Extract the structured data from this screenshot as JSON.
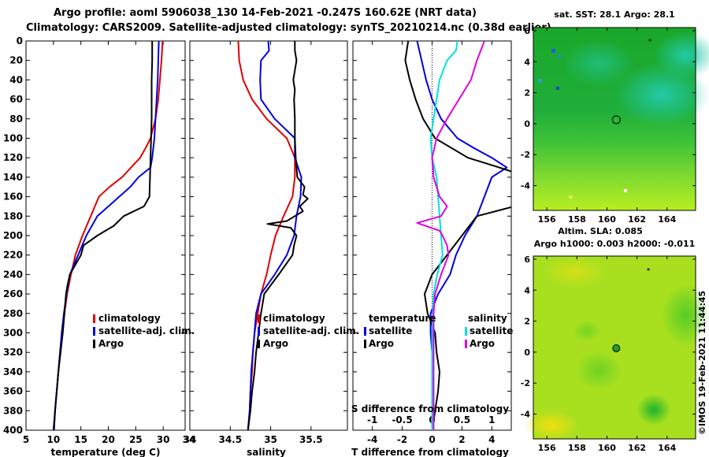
{
  "header": {
    "line1": "Argo profile: aoml 5906038_130 14-Feb-2021 -0.247S 160.62E (NRT data)",
    "line2": "Climatology: CARS2009. Satellite-adjusted climatology: synTS_20210214.nc (0.38d earlier)"
  },
  "colors": {
    "climatology": "#e00000",
    "satellite": "#0000e0",
    "argo": "#000000",
    "sat_salinity": "#00e0e0",
    "argo_salinity": "#e000e0"
  },
  "depth_ticks": [
    0,
    20,
    40,
    60,
    80,
    100,
    120,
    140,
    160,
    180,
    200,
    220,
    240,
    260,
    280,
    300,
    320,
    340,
    360,
    380,
    400
  ],
  "chart_data": [
    {
      "type": "line",
      "name": "temperature",
      "xlabel": "temperature (deg C)",
      "ylabel": "",
      "xlim": [
        5,
        34
      ],
      "ylim": [
        400,
        0
      ],
      "x_ticks": [
        "5",
        "10",
        "15",
        "20",
        "25",
        "30"
      ],
      "x_tick_values": [
        5,
        10,
        15,
        20,
        25,
        30
      ],
      "legend": [
        "climatology",
        "satellite-adj. clim.",
        "Argo"
      ],
      "series": [
        {
          "name": "climatology",
          "color": "#e00000",
          "depth": [
            0,
            20,
            40,
            60,
            80,
            100,
            110,
            120,
            140,
            150,
            160,
            180,
            200,
            220,
            240,
            260,
            280,
            300,
            320,
            340,
            360,
            380,
            400
          ],
          "values": [
            29.9,
            29.7,
            29.4,
            29.1,
            28.6,
            27.7,
            26.8,
            25.8,
            22.5,
            20.2,
            18.3,
            16.8,
            15.3,
            14.0,
            13.2,
            12.5,
            12.0,
            11.6,
            11.2,
            10.9,
            10.6,
            10.3,
            10.1
          ]
        },
        {
          "name": "satellite-adj. clim.",
          "color": "#0000e0",
          "depth": [
            0,
            20,
            40,
            60,
            80,
            100,
            120,
            130,
            140,
            150,
            160,
            180,
            200,
            220,
            240,
            260,
            280,
            300,
            320,
            340,
            360,
            380,
            400
          ],
          "values": [
            29.2,
            29.1,
            29.0,
            28.8,
            28.6,
            28.4,
            28.0,
            27.7,
            25.5,
            24.0,
            22.0,
            18.0,
            16.0,
            14.5,
            13.0,
            12.4,
            11.9,
            11.5,
            11.2,
            10.9,
            10.6,
            10.3,
            10.0
          ]
        },
        {
          "name": "Argo",
          "color": "#000000",
          "depth": [
            0,
            20,
            40,
            60,
            80,
            100,
            120,
            140,
            160,
            170,
            180,
            190,
            200,
            210,
            220,
            230,
            240,
            250,
            260,
            280,
            300,
            320,
            340,
            360,
            380,
            400
          ],
          "values": [
            28.0,
            28.0,
            27.9,
            27.9,
            27.9,
            27.8,
            27.7,
            27.6,
            27.5,
            26.5,
            22.8,
            21.0,
            18.0,
            15.5,
            15.0,
            14.0,
            13.0,
            12.6,
            12.3,
            12.0,
            11.7,
            11.3,
            10.9,
            10.6,
            10.3,
            10.1
          ]
        }
      ]
    },
    {
      "type": "line",
      "name": "salinity",
      "xlabel": "salinity",
      "ylabel": "",
      "xlim": [
        34.0,
        35.95
      ],
      "ylim": [
        400,
        0
      ],
      "x_ticks": [
        "34",
        "34.5",
        "35",
        "35.5"
      ],
      "x_tick_values": [
        34.0,
        34.5,
        35.0,
        35.5
      ],
      "legend": [
        "climatology",
        "satellite-adj. clim.",
        "Argo"
      ],
      "series": [
        {
          "name": "climatology",
          "color": "#e00000",
          "depth": [
            0,
            20,
            40,
            60,
            80,
            100,
            120,
            140,
            160,
            180,
            200,
            220,
            240,
            260,
            280,
            300,
            320,
            340,
            360,
            380,
            400
          ],
          "values": [
            34.6,
            34.61,
            34.66,
            34.77,
            34.95,
            35.2,
            35.3,
            35.3,
            35.27,
            35.16,
            35.06,
            35.0,
            34.95,
            34.88,
            34.84,
            34.8,
            34.78,
            34.77,
            34.75,
            34.74,
            34.72
          ]
        },
        {
          "name": "satellite-adj. clim.",
          "color": "#0000e0",
          "depth": [
            0,
            10,
            20,
            40,
            60,
            80,
            100,
            120,
            140,
            160,
            180,
            200,
            220,
            240,
            260,
            280,
            300,
            320,
            340,
            360,
            380,
            400
          ],
          "values": [
            34.97,
            34.98,
            34.88,
            34.87,
            34.88,
            35.05,
            35.3,
            35.3,
            35.38,
            35.37,
            35.32,
            35.29,
            35.2,
            35.05,
            34.88,
            34.82,
            34.8,
            34.78,
            34.76,
            34.75,
            34.74,
            34.72
          ]
        },
        {
          "name": "Argo",
          "color": "#000000",
          "depth": [
            0,
            10,
            20,
            40,
            50,
            60,
            80,
            100,
            120,
            140,
            150,
            158,
            162,
            170,
            175,
            180,
            185,
            188,
            192,
            200,
            210,
            220,
            240,
            260,
            280,
            300,
            320,
            340,
            360,
            380,
            400
          ],
          "values": [
            35.3,
            35.3,
            35.32,
            35.28,
            35.3,
            35.29,
            35.3,
            35.3,
            35.31,
            35.33,
            35.42,
            35.4,
            35.46,
            35.36,
            35.4,
            35.3,
            35.2,
            34.96,
            35.25,
            35.32,
            35.29,
            35.27,
            35.1,
            34.92,
            34.88,
            34.85,
            34.82,
            34.8,
            34.77,
            34.75,
            34.72
          ]
        }
      ]
    },
    {
      "type": "line",
      "name": "differences",
      "xlabel": "T difference from climatology",
      "xlabel_top": "S difference from climatology",
      "xlim": [
        -5.3,
        5.3
      ],
      "ylim": [
        400,
        0
      ],
      "x_ticks": [
        "-4",
        "-2",
        "0",
        "2",
        "4"
      ],
      "x_tick_values": [
        -4,
        -2,
        0,
        2,
        4
      ],
      "top_ticks": [
        "-1",
        "-0.5",
        "0",
        "0.5",
        "1"
      ],
      "top_tick_values": [
        -1,
        -0.5,
        0,
        0.5,
        1
      ],
      "legend_left_title": "temperature",
      "legend_right_title": "salinity",
      "legend_left": [
        "satellite",
        "Argo"
      ],
      "legend_right": [
        "satellite",
        "Argo"
      ],
      "series": [
        {
          "name": "temperature satellite",
          "color": "#0000e0",
          "depth": [
            0,
            20,
            40,
            60,
            80,
            100,
            110,
            120,
            130,
            140,
            160,
            180,
            200,
            220,
            240,
            260,
            280,
            300,
            320,
            340,
            360,
            380,
            400
          ],
          "values": [
            -1.0,
            -0.7,
            -0.4,
            0.0,
            0.6,
            1.7,
            2.8,
            4.0,
            5.0,
            4.0,
            3.5,
            3.0,
            2.2,
            1.6,
            1.2,
            0.4,
            -0.1,
            -0.1,
            0.0,
            0.0,
            0.0,
            0.0,
            0.0
          ]
        },
        {
          "name": "temperature Argo",
          "color": "#000000",
          "depth": [
            0,
            20,
            40,
            60,
            80,
            100,
            120,
            130,
            140,
            150,
            155,
            160,
            170,
            180,
            190,
            200,
            210,
            220,
            240,
            260,
            280,
            300,
            320,
            340,
            360,
            380,
            400
          ],
          "values": [
            -1.6,
            -1.8,
            -1.5,
            -1.1,
            -0.6,
            0.2,
            2.4,
            4.5,
            6.5,
            8.0,
            8.8,
            7.5,
            5.5,
            3.0,
            2.5,
            2.0,
            1.5,
            1.0,
            0.0,
            -0.5,
            -0.3,
            0.2,
            0.3,
            0.5,
            0.4,
            0.2,
            0.0
          ]
        },
        {
          "name": "salinity satellite",
          "color": "#00e0e0",
          "depth": [
            0,
            10,
            20,
            40,
            60,
            80,
            100,
            120,
            140,
            160,
            180,
            200,
            220,
            240,
            260,
            280,
            300,
            320,
            340,
            360,
            380,
            400
          ],
          "values": [
            1.7,
            1.6,
            1.0,
            0.5,
            0.3,
            0.1,
            -0.1,
            0.0,
            0.3,
            0.4,
            0.5,
            0.6,
            0.7,
            0.35,
            0.1,
            0.05,
            0.0,
            0.0,
            0.0,
            0.0,
            0.0,
            0.0
          ]
        },
        {
          "name": "salinity Argo",
          "color": "#e000e0",
          "depth": [
            0,
            20,
            40,
            60,
            80,
            100,
            120,
            140,
            160,
            170,
            180,
            187,
            195,
            200,
            210,
            220,
            240,
            260,
            280,
            300,
            320,
            340,
            360,
            380,
            400
          ],
          "values": [
            3.5,
            3.0,
            2.6,
            1.8,
            1.0,
            0.3,
            0.0,
            0.1,
            0.5,
            1.0,
            0.6,
            -1.0,
            0.5,
            0.7,
            1.0,
            1.1,
            0.6,
            0.2,
            0.1,
            0.1,
            0.1,
            0.1,
            0.1,
            0.1,
            0.1
          ]
        }
      ]
    },
    {
      "type": "heatmap",
      "name": "sat SST map",
      "title": "sat. SST: 28.1 Argo: 28.1",
      "x_ticks": [
        "156",
        "158",
        "160",
        "162",
        "164"
      ],
      "x_tick_values": [
        156,
        158,
        160,
        162,
        164
      ],
      "y_ticks": [
        "6",
        "4",
        "2",
        "0",
        "-2",
        "-4"
      ],
      "y_tick_values": [
        6,
        4,
        2,
        0,
        -2,
        -4
      ],
      "xlim": [
        155.1,
        165.9
      ],
      "ylim": [
        -5.6,
        6.2
      ],
      "marker": {
        "lon": 160.62,
        "lat": 0.25
      }
    },
    {
      "type": "heatmap",
      "name": "altimetry SLA map",
      "title": "Altim. SLA: 0.085",
      "subtitle": "Argo h1000: 0.003 h2000: -0.011",
      "x_ticks": [
        "156",
        "158",
        "160",
        "162",
        "164"
      ],
      "x_tick_values": [
        156,
        158,
        160,
        162,
        164
      ],
      "y_ticks": [
        "6",
        "4",
        "2",
        "0",
        "-2",
        "-4"
      ],
      "y_tick_values": [
        6,
        4,
        2,
        0,
        -2,
        -4
      ],
      "xlim": [
        155.1,
        165.9
      ],
      "ylim": [
        -5.6,
        6.2
      ],
      "marker": {
        "lon": 160.62,
        "lat": 0.25
      }
    }
  ],
  "credit": "©IMOS 19-Feb-2021 11:44:45"
}
